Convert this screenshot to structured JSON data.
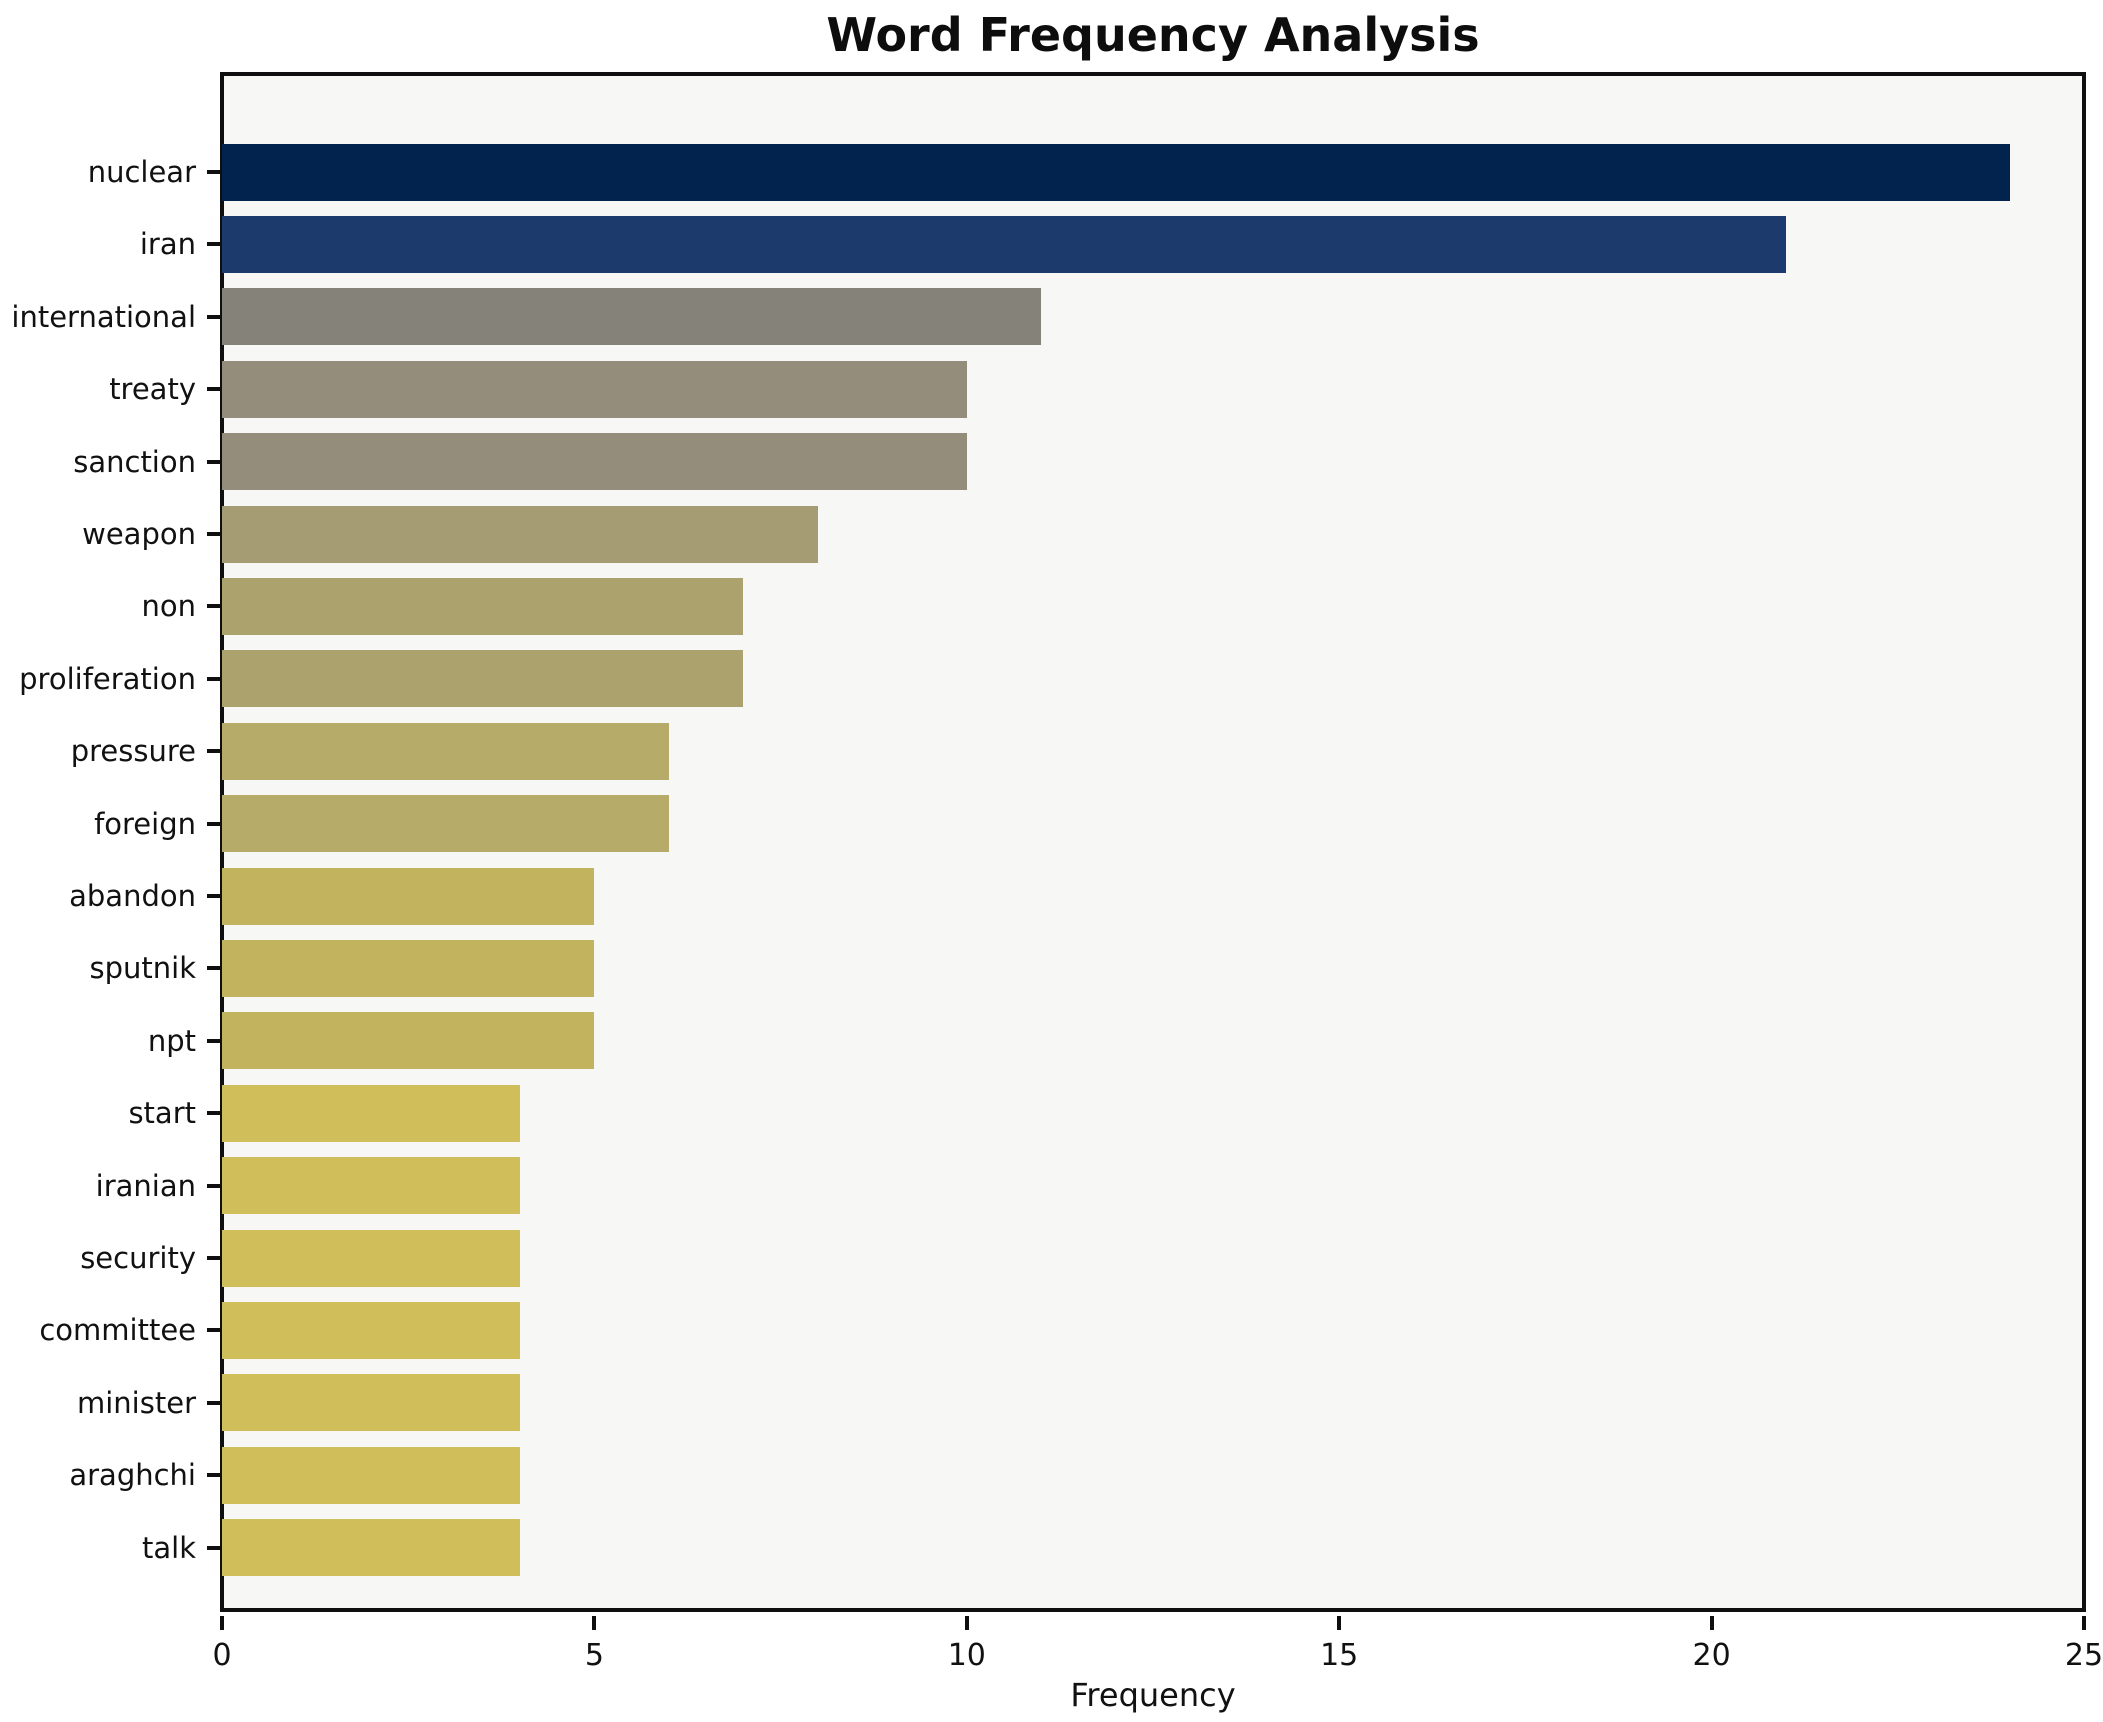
{
  "chart_data": {
    "type": "bar",
    "orientation": "horizontal",
    "title": "Word Frequency Analysis",
    "xlabel": "Frequency",
    "ylabel": "",
    "xlim": [
      0,
      25
    ],
    "xticks": [
      0,
      5,
      10,
      15,
      20,
      25
    ],
    "grid": false,
    "legend_position": "none",
    "plot_background": "#f7f7f5",
    "figure_background": "#ffffff",
    "spine_color": "#0f0f0f",
    "categories": [
      "nuclear",
      "iran",
      "international",
      "treaty",
      "sanction",
      "weapon",
      "non",
      "proliferation",
      "pressure",
      "foreign",
      "abandon",
      "sputnik",
      "npt",
      "start",
      "iranian",
      "security",
      "committee",
      "minister",
      "araghchi",
      "talk"
    ],
    "values": [
      24,
      21,
      11,
      10,
      10,
      8,
      7,
      7,
      6,
      6,
      5,
      5,
      5,
      4,
      4,
      4,
      4,
      4,
      4,
      4
    ],
    "bar_colors": [
      "#02234e",
      "#1c3a6b",
      "#858379",
      "#948d7c",
      "#948d7c",
      "#a59c73",
      "#aba26e",
      "#aba26e",
      "#b6ab68",
      "#b6ab68",
      "#c2b45e",
      "#c2b45e",
      "#c2b45e",
      "#cfbe59",
      "#cfbe59",
      "#cfbe59",
      "#cfbe59",
      "#cfbe59",
      "#cfbe59",
      "#cfbe59"
    ]
  }
}
